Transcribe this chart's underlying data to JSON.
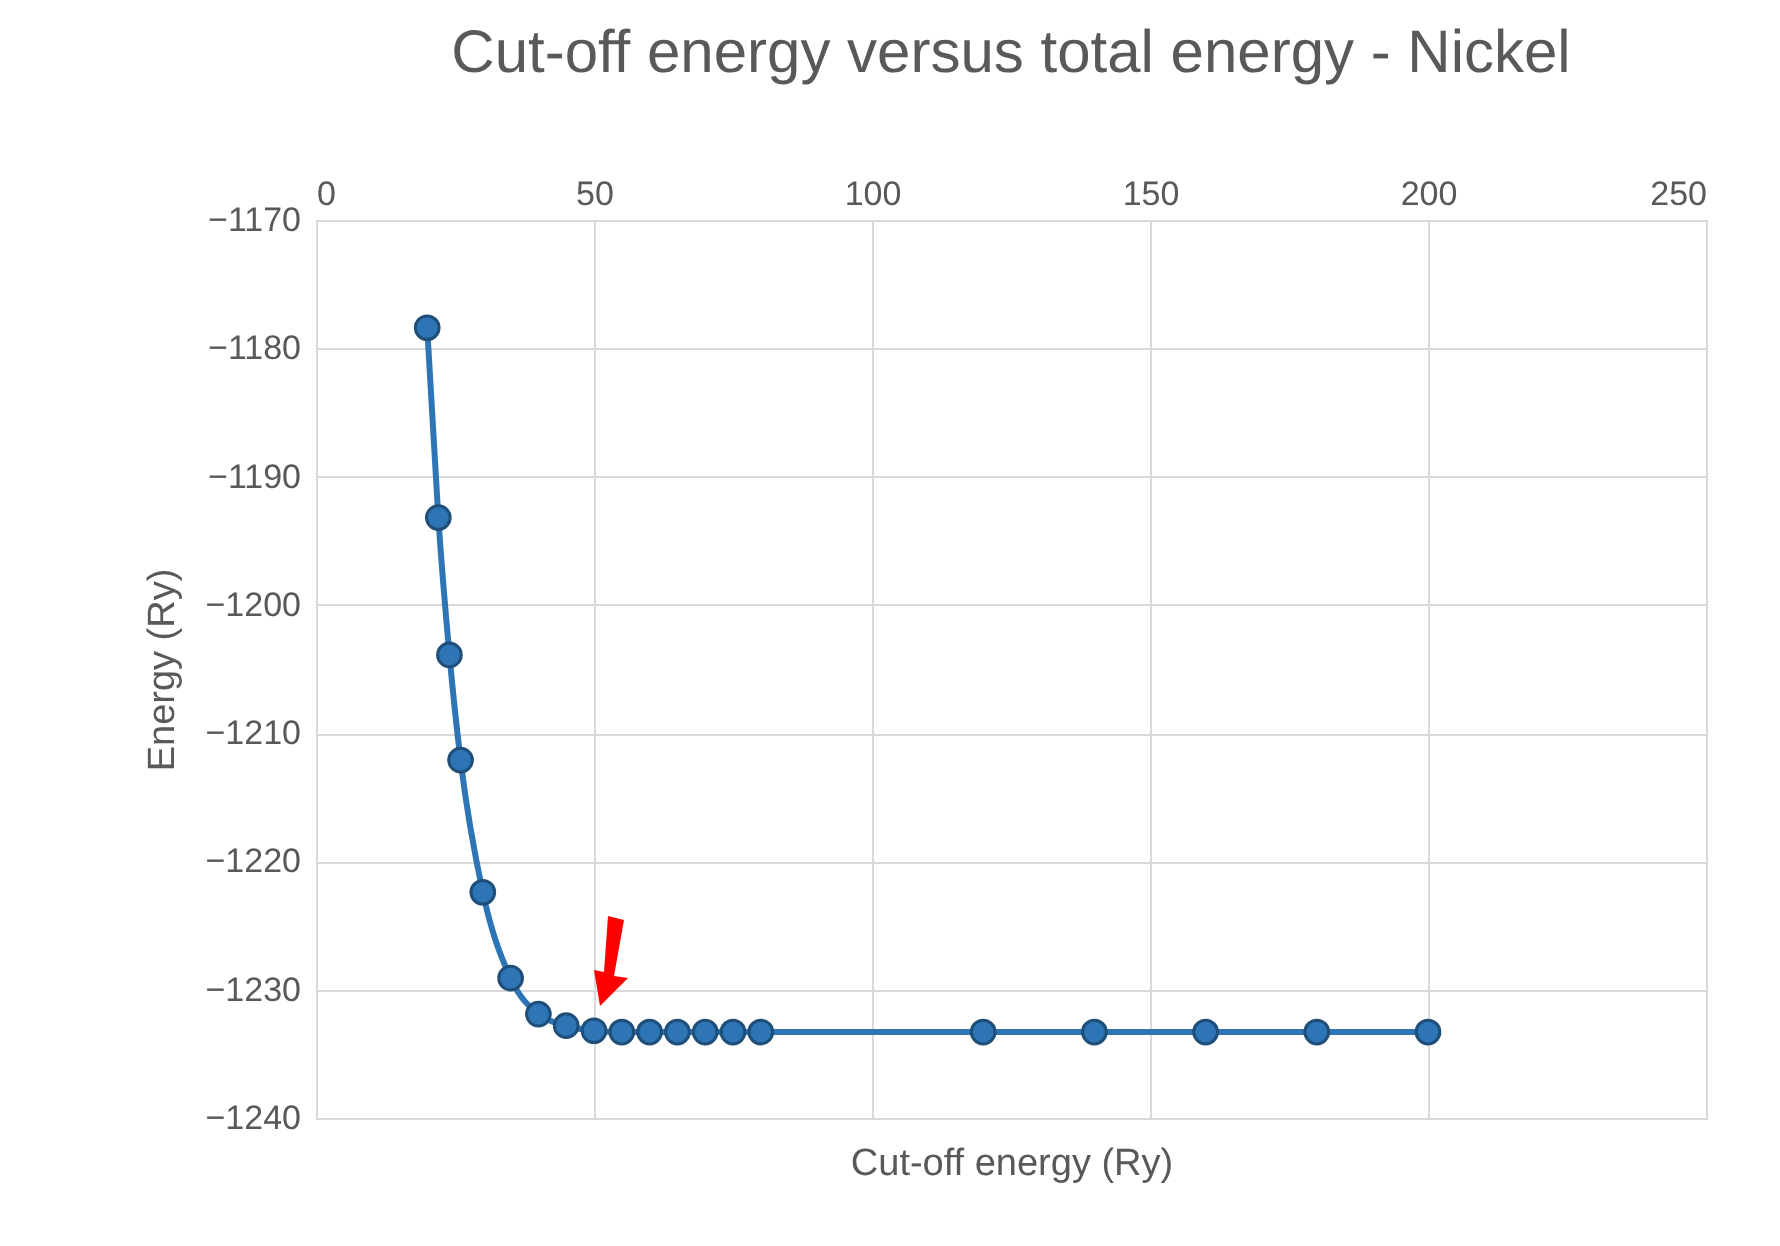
{
  "chart_data": {
    "type": "line",
    "title": "Cut-off energy versus total energy - Nickel",
    "xlabel": "Cut-off energy (Ry)",
    "ylabel": "Energy (Ry)",
    "x": [
      20,
      22,
      24,
      26,
      30,
      35,
      40,
      45,
      50,
      55,
      60,
      65,
      70,
      75,
      80,
      120,
      140,
      160,
      180,
      200
    ],
    "series": [
      {
        "color": "#2e75b6",
        "values": [
          -1178.4,
          -1193.2,
          -1203.9,
          -1212.1,
          -1222.4,
          -1229.1,
          -1231.9,
          -1232.8,
          -1233.2,
          -1233.3,
          -1233.3,
          -1233.3,
          -1233.3,
          -1233.3,
          -1233.3,
          -1233.3,
          -1233.3,
          -1233.3,
          -1233.3,
          -1233.3
        ]
      }
    ],
    "xlim": [
      0,
      250
    ],
    "xticks": [
      0,
      50,
      100,
      150,
      200,
      250
    ],
    "ylim": [
      -1240,
      -1170
    ],
    "yticks": [
      -1240,
      -1230,
      -1220,
      -1210,
      -1200,
      -1190,
      -1180,
      -1170
    ],
    "grid": true,
    "marker": "circle",
    "line_style": "solid",
    "legend": false
  }
}
